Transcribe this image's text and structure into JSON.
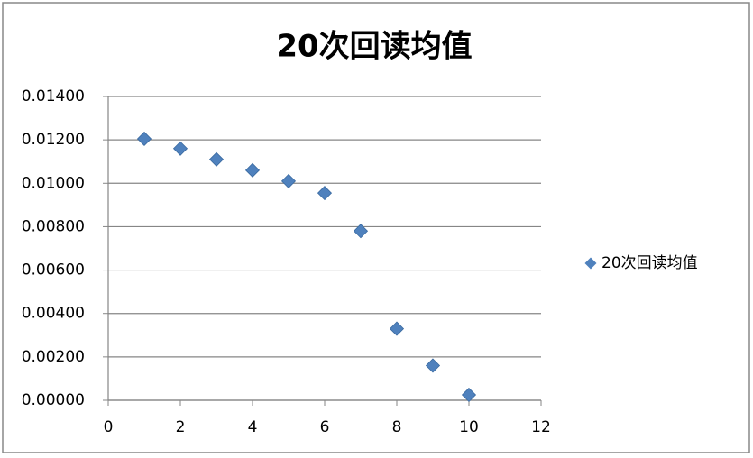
{
  "chart_data": {
    "type": "scatter",
    "title": "20次回读均值",
    "x": [
      1,
      2,
      3,
      4,
      5,
      6,
      7,
      8,
      9,
      10
    ],
    "series": [
      {
        "name": "20次回读均值",
        "color": "#4f81bd",
        "values": [
          0.01205,
          0.0116,
          0.0111,
          0.0106,
          0.0101,
          0.00955,
          0.0078,
          0.0033,
          0.0016,
          0.00025
        ]
      }
    ],
    "xlim": [
      0,
      12
    ],
    "xticks": [
      0,
      2,
      4,
      6,
      8,
      10,
      12
    ],
    "ylim": [
      0,
      0.014
    ],
    "yticks": [
      {
        "value": 0,
        "label": "0.00000"
      },
      {
        "value": 0.002,
        "label": "0.00200"
      },
      {
        "value": 0.004,
        "label": "0.00400"
      },
      {
        "value": 0.006,
        "label": "0.00600"
      },
      {
        "value": 0.008,
        "label": "0.00800"
      },
      {
        "value": 0.01,
        "label": "0.01000"
      },
      {
        "value": 0.012,
        "label": "0.01200"
      },
      {
        "value": 0.014,
        "label": "0.01400"
      }
    ],
    "grid": true,
    "legend": "right"
  }
}
